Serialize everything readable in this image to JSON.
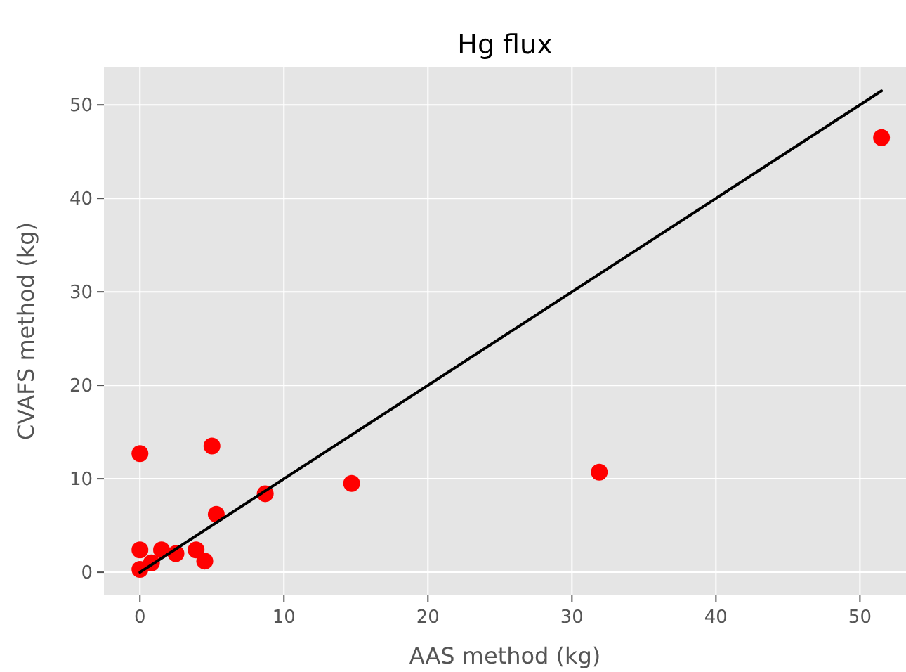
{
  "chart_data": {
    "type": "scatter",
    "title": "Hg flux",
    "xlabel": "AAS method (kg)",
    "ylabel": "CVAFS method (kg)",
    "xlim": [
      -2.5,
      53.2
    ],
    "ylim": [
      -2.4,
      54
    ],
    "xticks": [
      0,
      10,
      20,
      30,
      40,
      50
    ],
    "yticks": [
      0,
      10,
      20,
      30,
      40,
      50
    ],
    "grid": true,
    "series": [
      {
        "color": "#ff0000",
        "marker": "circle",
        "x": [
          51.5,
          31.9,
          14.7,
          8.7,
          5.3,
          5.0,
          0,
          4.5,
          3.9,
          2.5,
          1.5,
          0,
          0.8,
          0
        ],
        "values": [
          46.5,
          10.7,
          9.5,
          8.4,
          6.2,
          13.5,
          12.7,
          1.2,
          2.4,
          2.0,
          2.4,
          2.4,
          1.0,
          0.3
        ]
      },
      {
        "type": "line",
        "color": "#000000",
        "x": [
          0,
          51.5
        ],
        "values": [
          0,
          51.5
        ]
      }
    ]
  }
}
